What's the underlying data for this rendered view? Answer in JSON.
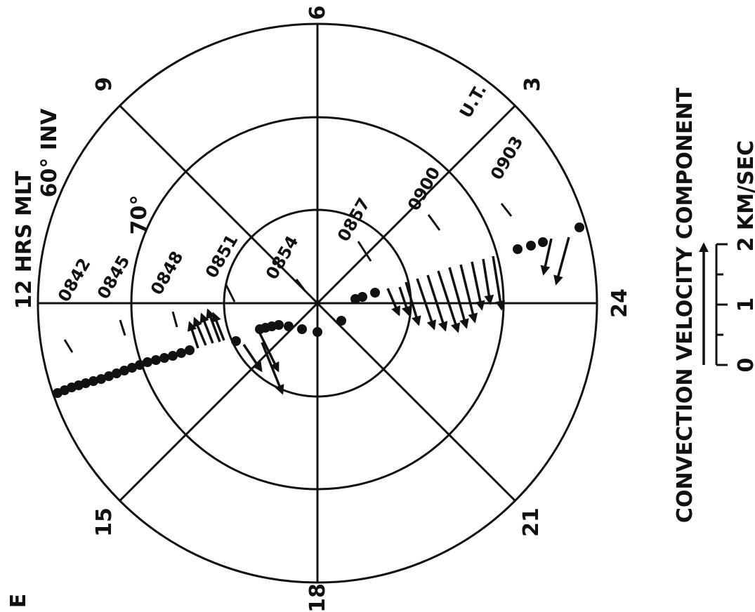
{
  "diagram": {
    "corner_letter": "E",
    "mlt_labels": {
      "top": "6",
      "upper_right": "3",
      "right": "24",
      "lower_right": "21",
      "bottom": "18",
      "lower_left": "15",
      "left_text": "12 HRS MLT",
      "upper_left": "9"
    },
    "latitude_labels": {
      "outer": "60° INV",
      "middle": "70°"
    },
    "time_labels": [
      "0842",
      "0845",
      "0848",
      "0851",
      "0854",
      "0857",
      "0900",
      "0903",
      "U.T."
    ],
    "legend": {
      "title": "CONVECTION VELOCITY COMPONENT",
      "unit": "KM/SEC",
      "scale_ticks": [
        "0",
        "1",
        "2"
      ]
    }
  }
}
